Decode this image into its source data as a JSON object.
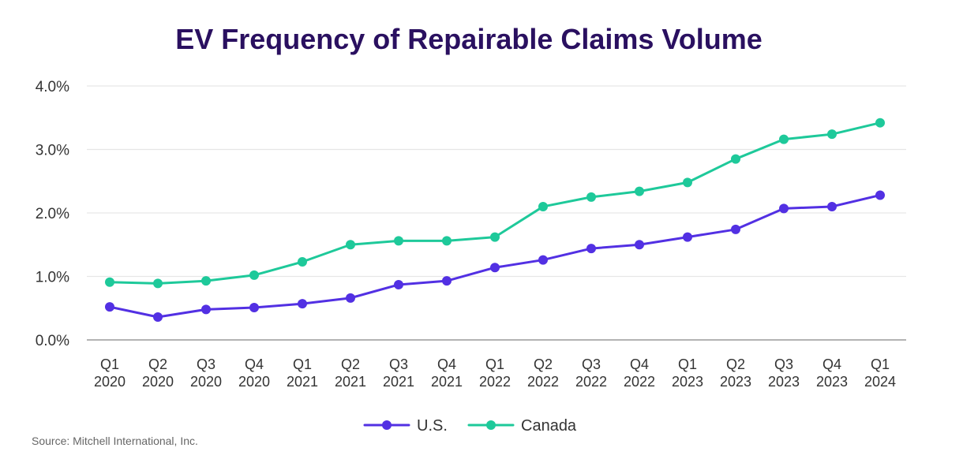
{
  "colors": {
    "title": "#2a1060",
    "grid": "#e6e6e6",
    "axis": "#9a9a9a",
    "text": "#333333",
    "source": "#666666"
  },
  "source": "Source: Mitchell International, Inc.",
  "chart_data": {
    "type": "line",
    "title": "EV Frequency of Repairable Claims Volume",
    "xlabel": "",
    "ylabel": "",
    "categories": [
      [
        "Q1",
        "2020"
      ],
      [
        "Q2",
        "2020"
      ],
      [
        "Q3",
        "2020"
      ],
      [
        "Q4",
        "2020"
      ],
      [
        "Q1",
        "2021"
      ],
      [
        "Q2",
        "2021"
      ],
      [
        "Q3",
        "2021"
      ],
      [
        "Q4",
        "2021"
      ],
      [
        "Q1",
        "2022"
      ],
      [
        "Q2",
        "2022"
      ],
      [
        "Q3",
        "2022"
      ],
      [
        "Q4",
        "2022"
      ],
      [
        "Q1",
        "2023"
      ],
      [
        "Q2",
        "2023"
      ],
      [
        "Q3",
        "2023"
      ],
      [
        "Q4",
        "2023"
      ],
      [
        "Q1",
        "2024"
      ]
    ],
    "ylim": [
      0,
      4
    ],
    "yticks": [
      0,
      1,
      2,
      3,
      4
    ],
    "ytick_labels": [
      "0.0%",
      "1.0%",
      "2.0%",
      "3.0%",
      "4.0%"
    ],
    "grid": true,
    "legend_position": "bottom-center",
    "series": [
      {
        "name": "U.S.",
        "color": "#5230e3",
        "values": [
          0.52,
          0.36,
          0.48,
          0.51,
          0.57,
          0.66,
          0.87,
          0.93,
          1.14,
          1.26,
          1.44,
          1.5,
          1.62,
          1.74,
          2.07,
          2.1,
          2.28
        ]
      },
      {
        "name": "Canada",
        "color": "#1ec99a",
        "values": [
          0.91,
          0.89,
          0.93,
          1.02,
          1.23,
          1.5,
          1.56,
          1.56,
          1.62,
          2.1,
          2.25,
          2.34,
          2.48,
          2.85,
          3.16,
          3.24,
          3.42
        ]
      }
    ]
  }
}
